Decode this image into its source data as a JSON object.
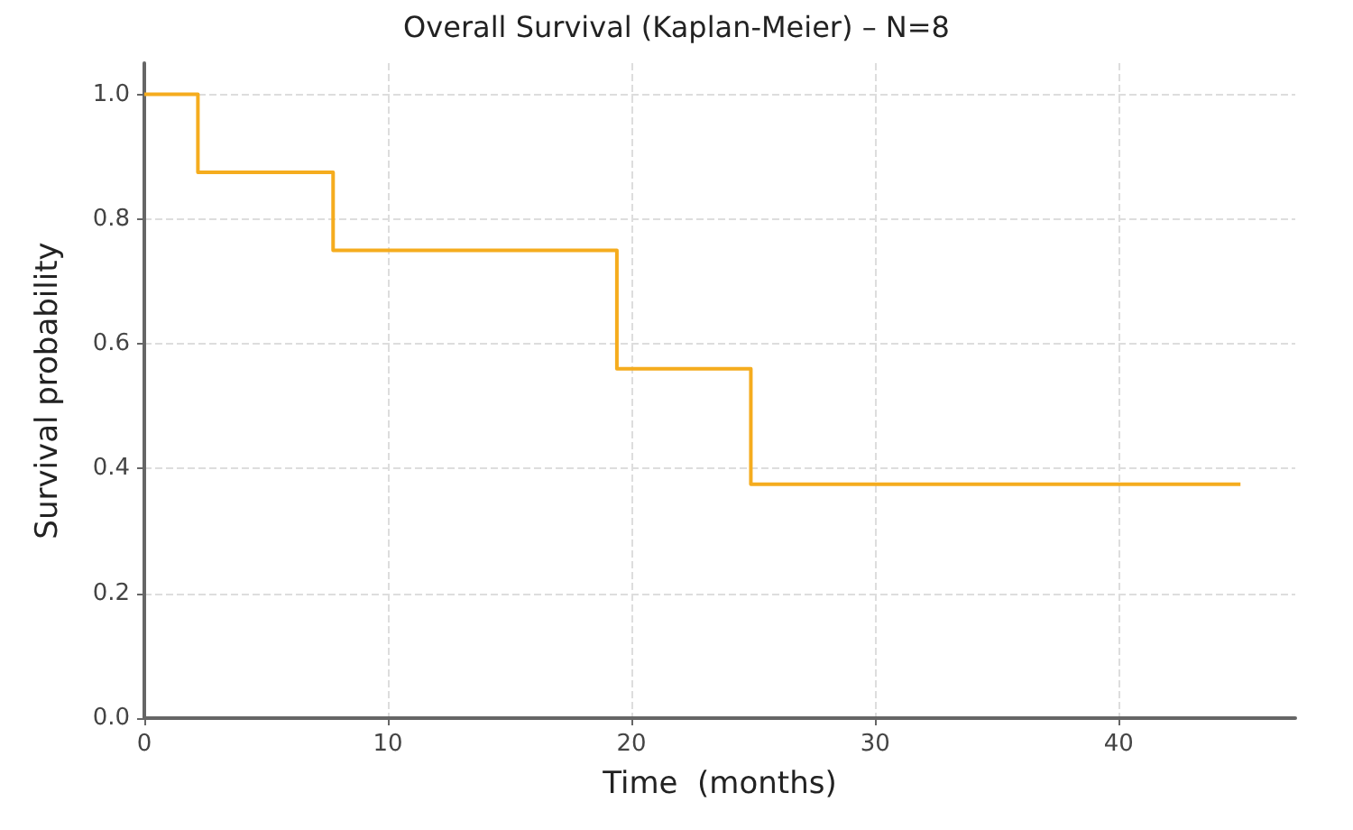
{
  "chart_data": {
    "type": "step",
    "title": "Overall Survival (Kaplan-Meier) – N=8",
    "xlabel": "Time  (months)",
    "ylabel": "Survival probability",
    "series": [
      {
        "color": "#f5ac1e",
        "x": [
          0,
          2.2,
          7.75,
          19.4,
          24.9,
          45
        ],
        "values": [
          1,
          0.875,
          0.75,
          0.56,
          0.375,
          0.375
        ]
      }
    ],
    "xlim": [
      0,
      47.25
    ],
    "xticks": [
      0,
      10,
      20,
      30,
      40
    ],
    "ylim": [
      0,
      1.05
    ],
    "yticks": [
      {
        "value": 0,
        "label": "0.0"
      },
      {
        "value": 0.2,
        "label": "0.2"
      },
      {
        "value": 0.4,
        "label": "0.4"
      },
      {
        "value": 0.6,
        "label": "0.6"
      },
      {
        "value": 0.8,
        "label": "0.8"
      },
      {
        "value": 1,
        "label": "1.0"
      }
    ],
    "grid": true,
    "marker": "none",
    "line_style": "solid"
  }
}
